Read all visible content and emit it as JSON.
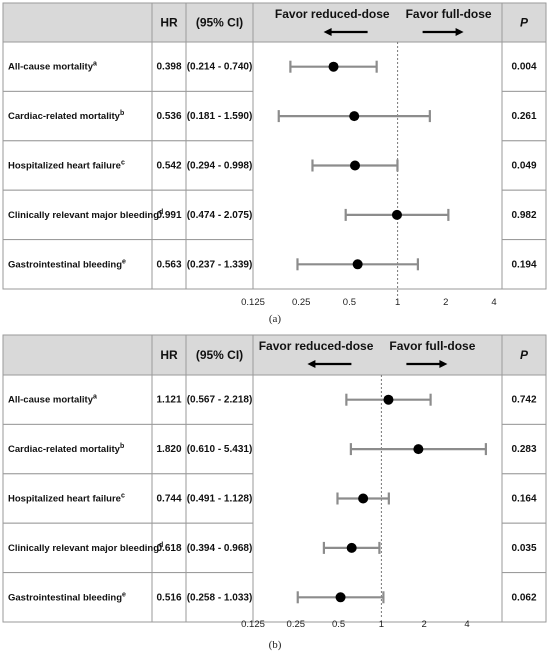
{
  "chart_data": [
    {
      "type": "forest",
      "panel_label": "(a)",
      "headers": {
        "hr": "HR",
        "ci": "(95% CI)",
        "p": "P"
      },
      "favor_left": "Favor reduced-dose",
      "favor_right": "Favor full-dose",
      "x_scale": "log2",
      "x_ticks": [
        0.125,
        0.25,
        0.5,
        1,
        2,
        4
      ],
      "x_tick_labels": [
        "0.125",
        "0.25",
        "0.5",
        "1",
        "2",
        "4"
      ],
      "reference_line": 1,
      "xlim": [
        0.125,
        4
      ],
      "rows": [
        {
          "label": "All-cause mortality",
          "sup": "a",
          "hr": 0.398,
          "hr_text": "0.398",
          "lo": 0.214,
          "hi": 0.74,
          "ci_text": "(0.214 - 0.740)",
          "p": "0.004"
        },
        {
          "label": "Cardiac-related mortality",
          "sup": "b",
          "hr": 0.536,
          "hr_text": "0.536",
          "lo": 0.181,
          "hi": 1.59,
          "ci_text": "(0.181 - 1.590)",
          "p": "0.261"
        },
        {
          "label": "Hospitalized heart failure",
          "sup": "c",
          "hr": 0.542,
          "hr_text": "0.542",
          "lo": 0.294,
          "hi": 0.998,
          "ci_text": "(0.294 - 0.998)",
          "p": "0.049"
        },
        {
          "label": "Clinically relevant major bleeding",
          "sup": "d",
          "hr": 0.991,
          "hr_text": "0.991",
          "lo": 0.474,
          "hi": 2.075,
          "ci_text": "(0.474 - 2.075)",
          "p": "0.982"
        },
        {
          "label": "Gastrointestinal bleeding",
          "sup": "e",
          "hr": 0.563,
          "hr_text": "0.563",
          "lo": 0.237,
          "hi": 1.339,
          "ci_text": "(0.237 - 1.339)",
          "p": "0.194"
        }
      ]
    },
    {
      "type": "forest",
      "panel_label": "(b)",
      "headers": {
        "hr": "HR",
        "ci": "(95% CI)",
        "p": "P"
      },
      "favor_left": "Favor reduced-dose",
      "favor_right": "Favor full-dose",
      "x_scale": "log2",
      "x_ticks": [
        0.125,
        0.25,
        0.5,
        1,
        2,
        4
      ],
      "x_tick_labels": [
        "0.125",
        "0.25",
        "0.5",
        "1",
        "2",
        "4"
      ],
      "reference_line": 1,
      "xlim": [
        0.125,
        4
      ],
      "rows": [
        {
          "label": "All-cause mortality",
          "sup": "a",
          "hr": 1.121,
          "hr_text": "1.121",
          "lo": 0.567,
          "hi": 2.218,
          "ci_text": "(0.567 - 2.218)",
          "p": "0.742"
        },
        {
          "label": "Cardiac-related mortality",
          "sup": "b",
          "hr": 1.82,
          "hr_text": "1.820",
          "lo": 0.61,
          "hi": 5.431,
          "ci_text": "(0.610 - 5.431)",
          "p": "0.283"
        },
        {
          "label": "Hospitalized heart failure",
          "sup": "c",
          "hr": 0.744,
          "hr_text": "0.744",
          "lo": 0.491,
          "hi": 1.128,
          "ci_text": "(0.491 - 1.128)",
          "p": "0.164"
        },
        {
          "label": "Clinically relevant major bleeding",
          "sup": "d",
          "hr": 0.618,
          "hr_text": "0.618",
          "lo": 0.394,
          "hi": 0.968,
          "ci_text": "(0.394 - 0.968)",
          "p": "0.035"
        },
        {
          "label": "Gastrointestinal bleeding",
          "sup": "e",
          "hr": 0.516,
          "hr_text": "0.516",
          "lo": 0.258,
          "hi": 1.033,
          "ci_text": "(0.258 - 1.033)",
          "p": "0.062"
        }
      ]
    }
  ],
  "colors": {
    "header_fill": "#d9d9d9",
    "border": "#9a9a9a",
    "ci_bar": "#8c8c8c",
    "point": "#000000",
    "ref_line": "#777777"
  }
}
